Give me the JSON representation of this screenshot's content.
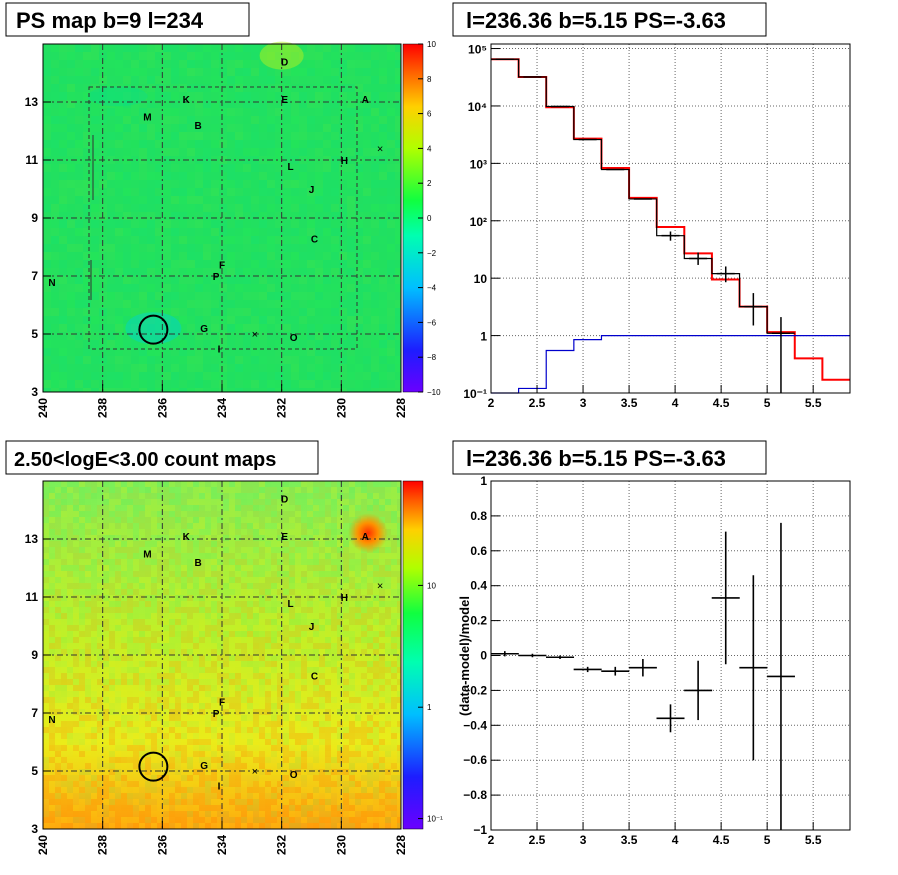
{
  "chart_data": [
    {
      "type": "heatmap",
      "title": "PS map b=9 l=234",
      "x_ticks": [
        "240",
        "238",
        "236",
        "234",
        "232",
        "230",
        "228"
      ],
      "y_ticks": [
        "3",
        "5",
        "7",
        "9",
        "11",
        "13"
      ],
      "xlim": [
        240,
        228
      ],
      "ylim": [
        3,
        15
      ],
      "grid": true,
      "colorbar_ticks": [
        "10",
        "8",
        "6",
        "4",
        "2",
        "0",
        "−2",
        "−4",
        "−6",
        "−8",
        "−10"
      ],
      "colorbar_range": [
        -10,
        10
      ],
      "marker_circle": {
        "l": 236.3,
        "b": 5.15
      },
      "markers_x": [
        {
          "l": 228.7,
          "b": 11.4
        },
        {
          "l": 232.9,
          "b": 5.0
        }
      ],
      "sources": [
        {
          "label": "D",
          "l": 231.9,
          "b": 14.4
        },
        {
          "label": "K",
          "l": 235.2,
          "b": 13.1
        },
        {
          "label": "E",
          "l": 231.9,
          "b": 13.1
        },
        {
          "label": "A",
          "l": 229.2,
          "b": 13.1
        },
        {
          "label": "M",
          "l": 236.5,
          "b": 12.5
        },
        {
          "label": "B",
          "l": 234.8,
          "b": 12.2
        },
        {
          "label": "L",
          "l": 231.7,
          "b": 10.8
        },
        {
          "label": "H",
          "l": 229.9,
          "b": 11.0
        },
        {
          "label": "J",
          "l": 231.0,
          "b": 10.0
        },
        {
          "label": "C",
          "l": 230.9,
          "b": 8.3
        },
        {
          "label": "F",
          "l": 234.0,
          "b": 7.4
        },
        {
          "label": "P",
          "l": 234.2,
          "b": 7.0
        },
        {
          "label": "N",
          "l": 239.7,
          "b": 6.8
        },
        {
          "label": "G",
          "l": 234.6,
          "b": 5.2
        },
        {
          "label": "O",
          "l": 231.6,
          "b": 4.9
        },
        {
          "label": "I",
          "l": 234.1,
          "b": 4.5
        }
      ]
    },
    {
      "type": "line",
      "title": "l=236.36 b=5.15 PS=-3.63",
      "x_ticks": [
        "2",
        "2.5",
        "3",
        "3.5",
        "4",
        "4.5",
        "5",
        "5.5"
      ],
      "y_ticks": [
        "10⁻¹",
        "1",
        "10",
        "10²",
        "10³",
        "10⁴",
        "10⁵"
      ],
      "xlim": [
        2,
        5.9
      ],
      "ylim": [
        0.1,
        120000
      ],
      "log_y": true,
      "grid": true,
      "bin_edges": [
        2.0,
        2.3,
        2.6,
        2.9,
        3.2,
        3.5,
        3.8,
        4.1,
        4.4,
        4.7,
        5.0,
        5.3,
        5.6,
        5.9
      ],
      "series": [
        {
          "color": "#ff0000",
          "values": [
            65000,
            32000,
            9500,
            2700,
            830,
            250,
            78,
            27,
            9.5,
            3.2,
            1.15,
            0.4,
            0.17
          ]
        },
        {
          "color": "#000000",
          "values": [
            65000,
            32000,
            9800,
            2600,
            780,
            240,
            55,
            22,
            12,
            3.2,
            1.1
          ]
        },
        {
          "color": "#0000cc",
          "values": [
            0.1,
            0.12,
            0.55,
            0.85,
            1,
            1,
            1,
            1,
            1,
            1,
            1,
            1,
            1
          ]
        }
      ],
      "data_points": [
        {
          "x": 2.15,
          "y": 65000
        },
        {
          "x": 2.45,
          "y": 32000
        },
        {
          "x": 2.75,
          "y": 9800
        },
        {
          "x": 3.05,
          "y": 2600
        },
        {
          "x": 3.35,
          "y": 780
        },
        {
          "x": 3.65,
          "y": 240
        },
        {
          "x": 3.95,
          "y": 55,
          "lo": 45,
          "hi": 65
        },
        {
          "x": 4.25,
          "y": 22,
          "lo": 17,
          "hi": 28
        },
        {
          "x": 4.55,
          "y": 12,
          "lo": 8.5,
          "hi": 16
        },
        {
          "x": 4.85,
          "y": 3.2,
          "lo": 1.5,
          "hi": 5.5
        },
        {
          "x": 5.15,
          "y": 1.1,
          "lo": 0.1,
          "hi": 2.1
        }
      ]
    },
    {
      "type": "heatmap",
      "title": "2.50<logE<3.00 count maps",
      "x_ticks": [
        "240",
        "238",
        "236",
        "234",
        "232",
        "230",
        "228"
      ],
      "y_ticks": [
        "3",
        "5",
        "7",
        "9",
        "11",
        "13"
      ],
      "xlim": [
        240,
        228
      ],
      "ylim": [
        3,
        15
      ],
      "grid": true,
      "colorbar_ticks": [
        "10",
        "1",
        "10⁻¹"
      ],
      "marker_circle": {
        "l": 236.3,
        "b": 5.15
      },
      "markers_x": [
        {
          "l": 228.7,
          "b": 11.4
        },
        {
          "l": 232.9,
          "b": 5.0
        }
      ],
      "sources": [
        {
          "label": "D",
          "l": 231.9,
          "b": 14.4
        },
        {
          "label": "K",
          "l": 235.2,
          "b": 13.1
        },
        {
          "label": "E",
          "l": 231.9,
          "b": 13.1
        },
        {
          "label": "A",
          "l": 229.2,
          "b": 13.1
        },
        {
          "label": "M",
          "l": 236.5,
          "b": 12.5
        },
        {
          "label": "B",
          "l": 234.8,
          "b": 12.2
        },
        {
          "label": "L",
          "l": 231.7,
          "b": 10.8
        },
        {
          "label": "H",
          "l": 229.9,
          "b": 11.0
        },
        {
          "label": "J",
          "l": 231.0,
          "b": 10.0
        },
        {
          "label": "C",
          "l": 230.9,
          "b": 8.3
        },
        {
          "label": "F",
          "l": 234.0,
          "b": 7.4
        },
        {
          "label": "P",
          "l": 234.2,
          "b": 7.0
        },
        {
          "label": "N",
          "l": 239.7,
          "b": 6.8
        },
        {
          "label": "G",
          "l": 234.6,
          "b": 5.2
        },
        {
          "label": "O",
          "l": 231.6,
          "b": 4.9
        },
        {
          "label": "I",
          "l": 234.1,
          "b": 4.5
        }
      ]
    },
    {
      "type": "scatter",
      "title": "l=236.36 b=5.15 PS=-3.63",
      "ylabel": "(data-model)/model",
      "x_ticks": [
        "2",
        "2.5",
        "3",
        "3.5",
        "4",
        "4.5",
        "5",
        "5.5"
      ],
      "y_ticks": [
        "−1",
        "−0.8",
        "−0.6",
        "−0.4",
        "−0.2",
        "0",
        "0.2",
        "0.4",
        "0.6",
        "0.8",
        "1"
      ],
      "xlim": [
        2,
        5.9
      ],
      "ylim": [
        -1,
        1
      ],
      "grid": true,
      "points": [
        {
          "x": 2.15,
          "y": 0.01,
          "err": 0.015
        },
        {
          "x": 2.45,
          "y": 0.0,
          "err": 0.01
        },
        {
          "x": 2.75,
          "y": -0.01,
          "err": 0.01
        },
        {
          "x": 3.05,
          "y": -0.08,
          "err": 0.015
        },
        {
          "x": 3.35,
          "y": -0.09,
          "err": 0.025
        },
        {
          "x": 3.65,
          "y": -0.07,
          "err": 0.05
        },
        {
          "x": 3.95,
          "y": -0.36,
          "err": 0.08
        },
        {
          "x": 4.25,
          "y": -0.2,
          "err": 0.17
        },
        {
          "x": 4.55,
          "y": 0.33,
          "err": 0.38
        },
        {
          "x": 4.85,
          "y": -0.07,
          "err": 0.53
        },
        {
          "x": 5.15,
          "y": -0.12,
          "err": 0.88
        }
      ]
    }
  ]
}
